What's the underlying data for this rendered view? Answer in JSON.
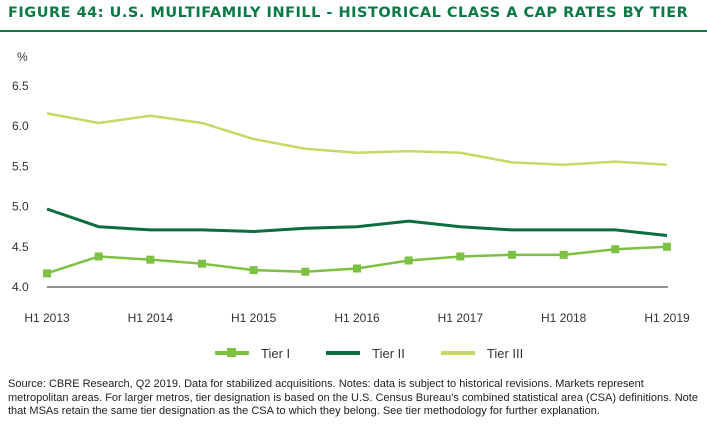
{
  "title": "FIGURE 44: U.S. MULTIFAMILY INFILL - HISTORICAL CLASS A CAP RATES BY TIER",
  "source": "Source: CBRE Research, Q2 2019. Data for stabilized acquisitions. Notes: data is subject to historical revisions. Markets represent metropolitan areas. For larger metros, tier designation is based on the U.S. Census Bureau's combined statistical area (CSA) definitions. Note that MSAs retain the same tier designation as the CSA to which they belong. See tier methodology for further explanation.",
  "chart_data": {
    "type": "line",
    "title": "",
    "xlabel": "",
    "ylabel": "%",
    "ylim": [
      4.0,
      6.5
    ],
    "yticks": [
      "4.0",
      "4.5",
      "5.0",
      "5.5",
      "6.0",
      "6.5"
    ],
    "x": [
      "H1 2013",
      "H2 2013",
      "H1 2014",
      "H2 2014",
      "H1 2015",
      "H2 2015",
      "H1 2016",
      "H2 2016",
      "H1 2017",
      "H2 2017",
      "H1 2018",
      "H2 2018",
      "H1 2019"
    ],
    "xtick_labels": [
      "H1 2013",
      "H1 2014",
      "H1 2015",
      "H1 2016",
      "H1 2017",
      "H1 2018",
      "H1 2019"
    ],
    "grid": false,
    "legend_position": "bottom",
    "series": [
      {
        "name": "Tier I",
        "color": "#7cc142",
        "markers": true,
        "values": [
          4.17,
          4.38,
          4.34,
          4.29,
          4.21,
          4.19,
          4.23,
          4.33,
          4.38,
          4.4,
          4.4,
          4.47,
          4.5
        ]
      },
      {
        "name": "Tier II",
        "color": "#0b6e3f",
        "markers": false,
        "values": [
          4.97,
          4.75,
          4.71,
          4.71,
          4.69,
          4.73,
          4.75,
          4.82,
          4.75,
          4.71,
          4.71,
          4.71,
          4.64
        ]
      },
      {
        "name": "Tier III",
        "color": "#c5d964",
        "markers": false,
        "values": [
          6.16,
          6.04,
          6.13,
          6.04,
          5.84,
          5.72,
          5.67,
          5.69,
          5.67,
          5.55,
          5.52,
          5.56,
          5.52
        ]
      }
    ]
  }
}
